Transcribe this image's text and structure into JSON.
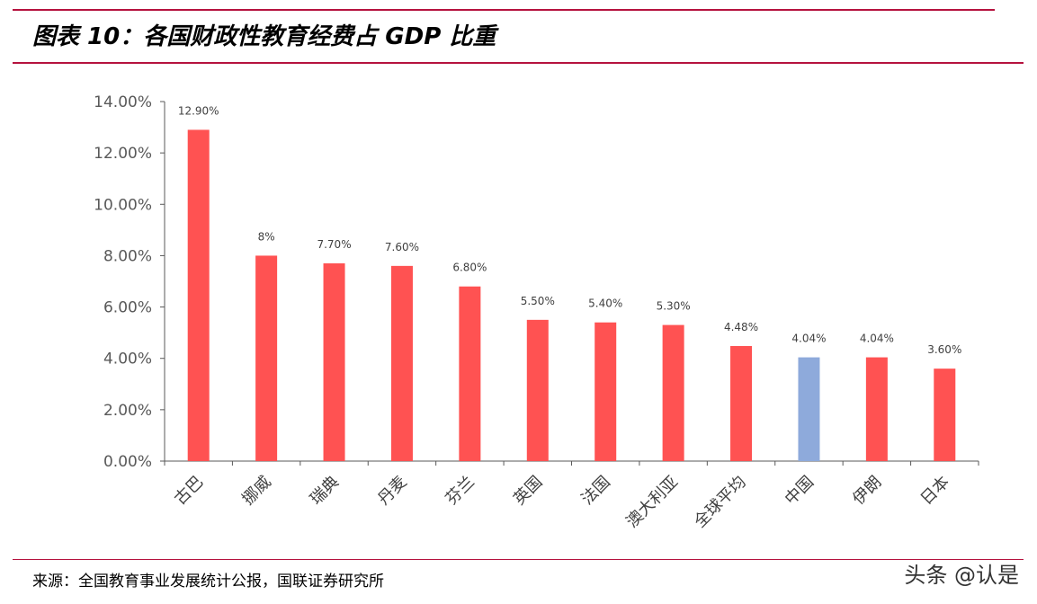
{
  "header": {
    "title": "图表 10：各国财政性教育经费占 GDP 比重"
  },
  "footer": {
    "source": "来源：全国教育事业发展统计公报，国联证券研究所",
    "watermark": "头条 @认是"
  },
  "colors": {
    "accent": "#b5123e",
    "bar": "#ff5252",
    "highlight": "#8eaadb",
    "axis": "#595959"
  },
  "chart_data": {
    "type": "bar",
    "title": "",
    "xlabel": "",
    "ylabel": "",
    "categories": [
      "古巴",
      "挪威",
      "瑞典",
      "丹麦",
      "芬兰",
      "英国",
      "法国",
      "澳大利亚",
      "全球平均",
      "中国",
      "伊朗",
      "日本"
    ],
    "values": [
      12.9,
      8.0,
      7.7,
      7.6,
      6.8,
      5.5,
      5.4,
      5.3,
      4.48,
      4.04,
      4.04,
      3.6
    ],
    "data_labels": [
      "12.90%",
      "8%",
      "7.70%",
      "7.60%",
      "6.80%",
      "5.50%",
      "5.40%",
      "5.30%",
      "4.48%",
      "4.04%",
      "4.04%",
      "3.60%"
    ],
    "highlight_category": "中国",
    "ylim": [
      0,
      14
    ],
    "yticks": [
      0,
      2,
      4,
      6,
      8,
      10,
      12,
      14
    ],
    "ytick_labels": [
      "0.00%",
      "2.00%",
      "4.00%",
      "6.00%",
      "8.00%",
      "10.00%",
      "12.00%",
      "14.00%"
    ],
    "grid": false,
    "legend": "none"
  }
}
